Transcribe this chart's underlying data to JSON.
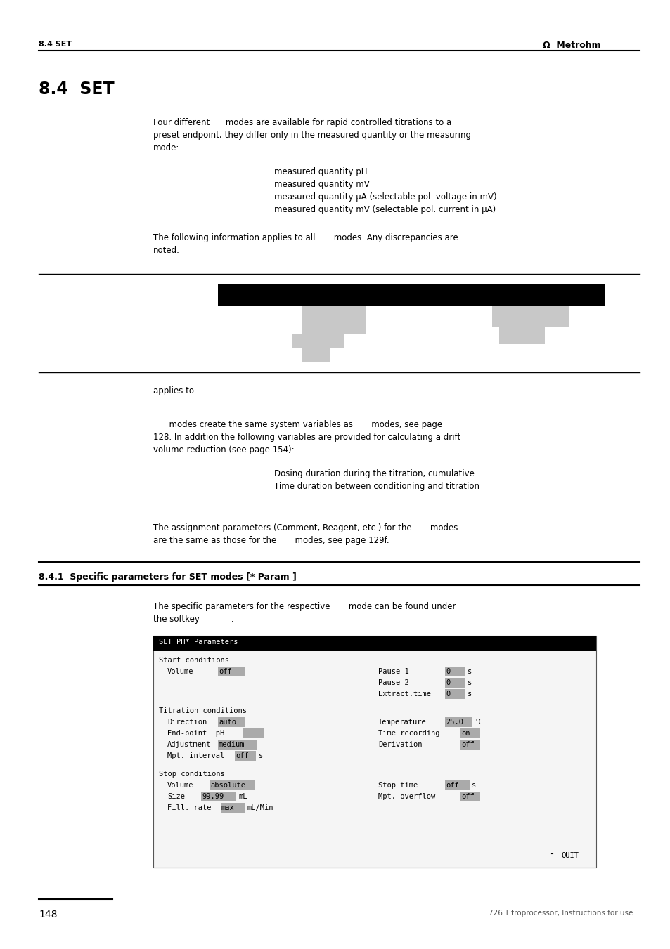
{
  "bg_color": "#ffffff",
  "header_text_left": "8.4 SET",
  "header_text_right": "Ω  Metrohm",
  "title": "8.4  SET",
  "para1_a": "Four different      modes are available for rapid controlled titrations to a",
  "para1_b": "preset endpoint; they differ only in the measured quantity or the measuring",
  "para1_c": "mode:",
  "list_items": [
    "measured quantity pH",
    "measured quantity mV",
    "measured quantity μA (selectable pol. voltage in mV)",
    "measured quantity mV (selectable pol. current in μA)"
  ],
  "para2_a": "The following information applies to all       modes. Any discrepancies are",
  "para2_b": "noted.",
  "para3": "applies to",
  "para4_a": "      modes create the same system variables as       modes, see page",
  "para4_b": "128. In addition the following variables are provided for calculating a drift",
  "para4_c": "volume reduction (see page 154):",
  "list2_items": [
    "Dosing duration during the titration, cumulative",
    "Time duration between conditioning and titration"
  ],
  "para5_a": "The assignment parameters (Comment, Reagent, etc.) for the       modes",
  "para5_b": "are the same as those for the       modes, see page 129f.",
  "section_title": "8.4.1  Specific parameters for SET modes [* Param ]",
  "para6_a": "The specific parameters for the respective       mode can be found under",
  "para6_b": "the softkey            .",
  "screen_title": "SET_PH* Parameters",
  "footer_page": "148",
  "footer_text": "726 Titroprocessor, Instructions for use"
}
